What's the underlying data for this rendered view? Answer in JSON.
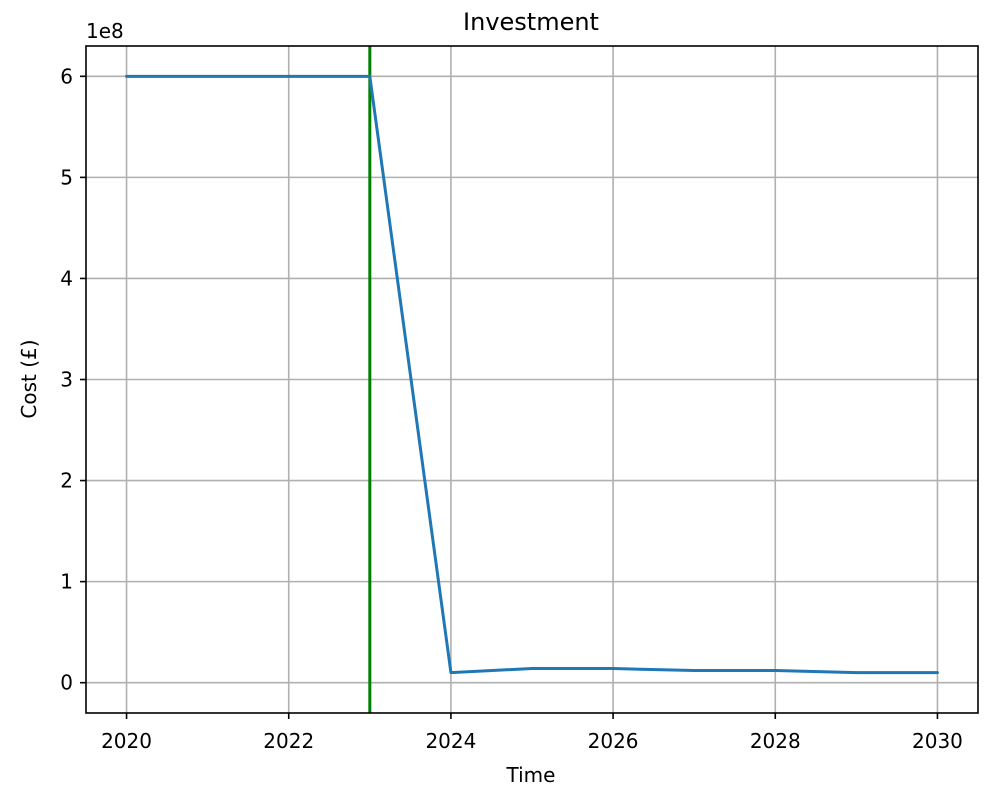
{
  "chart_data": {
    "type": "line",
    "title": "Investment",
    "xlabel": "Time",
    "ylabel": "Cost (£)",
    "y_scale_label": "1e8",
    "xlim": [
      2019.5,
      2030.5
    ],
    "ylim": [
      -0.3,
      6.3
    ],
    "y_multiplier": 100000000,
    "x_ticks": [
      2020,
      2022,
      2024,
      2026,
      2028,
      2030
    ],
    "x_tick_labels": [
      "2020",
      "2022",
      "2024",
      "2026",
      "2028",
      "2030"
    ],
    "y_ticks": [
      0,
      1,
      2,
      3,
      4,
      5,
      6
    ],
    "y_tick_labels": [
      "0",
      "1",
      "2",
      "3",
      "4",
      "5",
      "6"
    ],
    "grid": true,
    "series": [
      {
        "color": "#1f77b4",
        "x": [
          2020,
          2021,
          2022,
          2023,
          2024,
          2025,
          2026,
          2027,
          2028,
          2029,
          2030
        ],
        "y": [
          6.0,
          6.0,
          6.0,
          6.0,
          0.1,
          0.14,
          0.14,
          0.12,
          0.12,
          0.1,
          0.1
        ]
      }
    ],
    "vertical_lines": [
      {
        "x": 2023,
        "color": "#008000"
      }
    ]
  }
}
